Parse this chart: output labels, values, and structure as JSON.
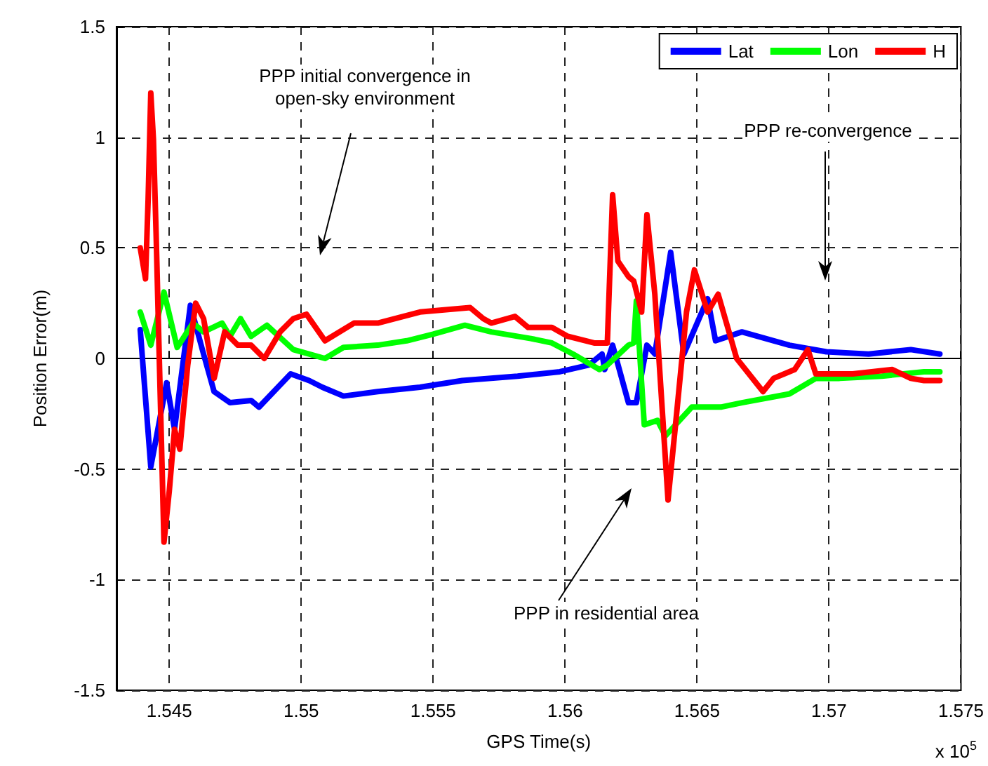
{
  "chart_data": {
    "type": "line",
    "xlabel": "GPS Time(s)",
    "ylabel": "Position Error(m)",
    "xlim": [
      1.543,
      1.575
    ],
    "xticks": [
      1.545,
      1.55,
      1.555,
      1.56,
      1.565,
      1.57,
      1.575
    ],
    "ylim": [
      -1.5,
      1.5
    ],
    "yticks": [
      -1.5,
      -1,
      -0.5,
      0,
      0.5,
      1,
      1.5
    ],
    "grid": true,
    "legend": "top right",
    "marker": "none",
    "line_style": "solid",
    "annotations": [
      "PPP initial convergence in\nopen-sky environment",
      "PPP re-convergence",
      "PPP in residential area",
      "x 10$^{5}$"
    ],
    "series": [
      {
        "name": "Lat",
        "color": "#0000ff",
        "x": [
          1.5439,
          1.5443,
          1.5449,
          1.5452,
          1.5458,
          1.5463,
          1.5467,
          1.5473,
          1.5481,
          1.5484,
          1.5496,
          1.5503,
          1.5508,
          1.5516,
          1.5529,
          1.5545,
          1.5561,
          1.5582,
          1.5598,
          1.5609,
          1.5614,
          1.5615,
          1.5618,
          1.5624,
          1.5627,
          1.5631,
          1.5634,
          1.564,
          1.5645,
          1.5654,
          1.5657,
          1.5667,
          1.5685,
          1.5699,
          1.5715,
          1.5731,
          1.5742
        ],
        "values": [
          0.13,
          -0.49,
          -0.11,
          -0.32,
          0.24,
          0.02,
          -0.15,
          -0.2,
          -0.19,
          -0.22,
          -0.07,
          -0.1,
          -0.13,
          -0.17,
          -0.15,
          -0.13,
          -0.1,
          -0.08,
          -0.06,
          -0.03,
          0.02,
          -0.05,
          0.06,
          -0.2,
          -0.2,
          0.06,
          0.02,
          0.48,
          0.02,
          0.27,
          0.08,
          0.12,
          0.06,
          0.03,
          0.02,
          0.04,
          0.02
        ]
      },
      {
        "name": "Lon",
        "color": "#00ff00",
        "x": [
          1.5439,
          1.5443,
          1.5448,
          1.5453,
          1.5459,
          1.5463,
          1.547,
          1.5473,
          1.5477,
          1.5481,
          1.5487,
          1.5497,
          1.5509,
          1.5516,
          1.5529,
          1.554,
          1.555,
          1.5562,
          1.5572,
          1.5587,
          1.5595,
          1.5603,
          1.5613,
          1.5616,
          1.5624,
          1.5626,
          1.5627,
          1.563,
          1.5635,
          1.5638,
          1.5648,
          1.5659,
          1.5667,
          1.5685,
          1.5695,
          1.5704,
          1.572,
          1.5736,
          1.5742
        ],
        "values": [
          0.21,
          0.06,
          0.3,
          0.05,
          0.16,
          0.12,
          0.16,
          0.1,
          0.18,
          0.1,
          0.15,
          0.04,
          0.0,
          0.05,
          0.06,
          0.08,
          0.11,
          0.15,
          0.12,
          0.09,
          0.07,
          0.02,
          -0.05,
          -0.03,
          0.06,
          0.07,
          0.26,
          -0.3,
          -0.28,
          -0.35,
          -0.22,
          -0.22,
          -0.2,
          -0.16,
          -0.09,
          -0.09,
          -0.08,
          -0.06,
          -0.06
        ]
      },
      {
        "name": "H",
        "color": "#ff0000",
        "x": [
          1.5439,
          1.5441,
          1.5442,
          1.5443,
          1.5444,
          1.5445,
          1.5448,
          1.545,
          1.5452,
          1.5454,
          1.5457,
          1.546,
          1.5463,
          1.5467,
          1.5471,
          1.5476,
          1.5481,
          1.5486,
          1.5492,
          1.5497,
          1.5502,
          1.5509,
          1.552,
          1.5529,
          1.5545,
          1.5564,
          1.5569,
          1.5572,
          1.5581,
          1.5586,
          1.5595,
          1.5601,
          1.5611,
          1.5616,
          1.5618,
          1.562,
          1.5624,
          1.5626,
          1.5629,
          1.5631,
          1.5634,
          1.5639,
          1.5642,
          1.5646,
          1.5649,
          1.5654,
          1.5658,
          1.5665,
          1.5675,
          1.5679,
          1.5687,
          1.5692,
          1.5695,
          1.5709,
          1.5724,
          1.5731,
          1.5736,
          1.5742
        ],
        "values": [
          0.5,
          0.36,
          0.72,
          1.2,
          0.99,
          0.57,
          -0.83,
          -0.6,
          -0.32,
          -0.41,
          -0.03,
          0.25,
          0.18,
          -0.09,
          0.12,
          0.06,
          0.06,
          0.0,
          0.12,
          0.18,
          0.2,
          0.08,
          0.16,
          0.16,
          0.21,
          0.23,
          0.18,
          0.16,
          0.19,
          0.14,
          0.14,
          0.1,
          0.07,
          0.07,
          0.74,
          0.44,
          0.37,
          0.35,
          0.21,
          0.65,
          0.29,
          -0.64,
          -0.28,
          0.21,
          0.4,
          0.21,
          0.29,
          0.0,
          -0.15,
          -0.09,
          -0.05,
          0.04,
          -0.07,
          -0.07,
          -0.05,
          -0.09,
          -0.1,
          -0.1
        ]
      }
    ]
  }
}
